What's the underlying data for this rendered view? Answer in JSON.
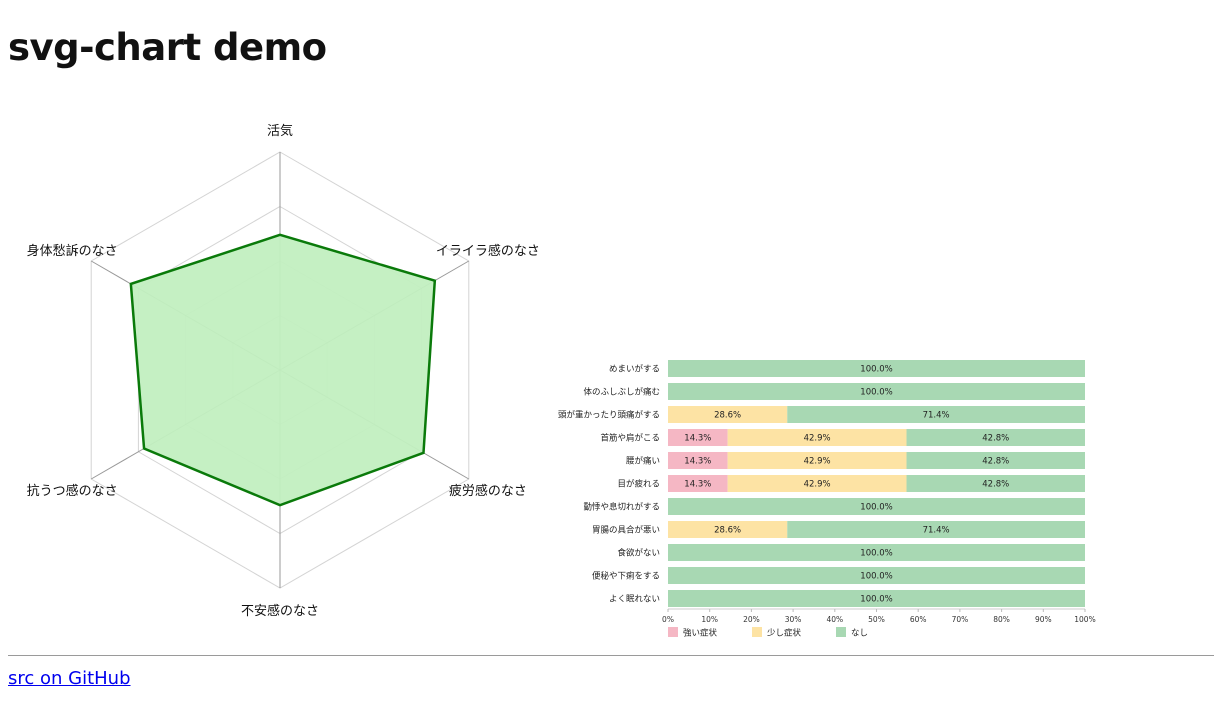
{
  "page": {
    "title": "svg-chart demo",
    "footer_link": "src on GitHub"
  },
  "chart_data": [
    {
      "type": "radar",
      "axes": [
        "活気",
        "イライラ感のなさ",
        "疲労感のなさ",
        "不安感のなさ",
        "抗うつ感のなさ",
        "身体愁訴のなさ"
      ],
      "values": [
        0.62,
        0.82,
        0.76,
        0.62,
        0.72,
        0.79
      ],
      "range": [
        0,
        1
      ],
      "grid_levels": 4,
      "colors": {
        "line": "#0a7a0a",
        "fill": "#c2efc0",
        "grid": "#d4d4d4",
        "spoke": "#999999"
      }
    },
    {
      "type": "bar",
      "orientation": "horizontal",
      "stacked": true,
      "categories": [
        "めまいがする",
        "体のふしぶしが痛む",
        "頭が重かったり頭痛がする",
        "首筋や肩がこる",
        "腰が痛い",
        "目が疲れる",
        "動悸や息切れがする",
        "胃腸の具合が悪い",
        "食欲がない",
        "便秘や下痢をする",
        "よく眠れない"
      ],
      "series": [
        {
          "name": "強い症状",
          "color": "#f5b7c4",
          "values": [
            0,
            0,
            0,
            14.3,
            14.3,
            14.3,
            0,
            0,
            0,
            0,
            0
          ]
        },
        {
          "name": "少し症状",
          "color": "#fde3a4",
          "values": [
            0,
            0,
            28.6,
            42.9,
            42.9,
            42.9,
            0,
            28.6,
            0,
            0,
            0
          ]
        },
        {
          "name": "なし",
          "color": "#a8d8b3",
          "values": [
            100,
            100,
            71.4,
            42.8,
            42.8,
            42.8,
            100,
            71.4,
            100,
            100,
            100
          ]
        }
      ],
      "xlim": [
        0,
        100
      ],
      "xticks": [
        "0%",
        "10%",
        "20%",
        "30%",
        "40%",
        "50%",
        "60%",
        "70%",
        "80%",
        "90%",
        "100%"
      ],
      "legend": "bottom-left",
      "value_suffix": "%"
    }
  ]
}
